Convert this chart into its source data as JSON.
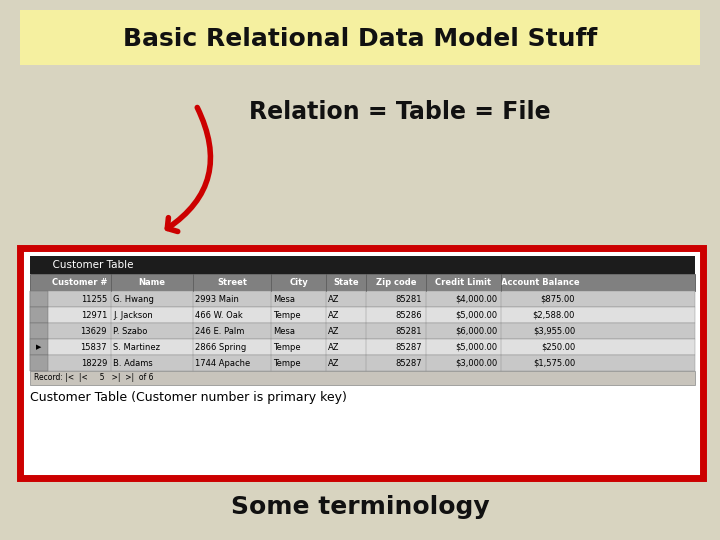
{
  "title": "Basic Relational Data Model Stuff",
  "title_bg": "#F5F0A0",
  "title_color": "#111111",
  "bg_color": "#D8D4C0",
  "subtitle": "Relation = Table = File",
  "subtitle_color": "#111111",
  "bottom_text": "Some terminology",
  "bottom_text_color": "#111111",
  "arrow_color": "#CC0000",
  "table_border_color": "#CC0000",
  "table_header": [
    "Customer #",
    "Name",
    "Street",
    "City",
    "State",
    "Zip code",
    "Credit Limit",
    "Account Balance"
  ],
  "table_rows": [
    [
      "11255",
      "G. Hwang",
      "2993 Main",
      "Mesa",
      "AZ",
      "85281",
      "$4,000.00",
      "$875.00"
    ],
    [
      "12971",
      "J. Jackson",
      "466 W. Oak",
      "Tempe",
      "AZ",
      "85286",
      "$5,000.00",
      "$2,588.00"
    ],
    [
      "13629",
      "P. Szabo",
      "246 E. Palm",
      "Mesa",
      "AZ",
      "85281",
      "$6,000.00",
      "$3,955.00"
    ],
    [
      "15837",
      "S. Martinez",
      "2866 Spring",
      "Tempe",
      "AZ",
      "85287",
      "$5,000.00",
      "$250.00"
    ],
    [
      "18229",
      "B. Adams",
      "1744 Apache",
      "Tempe",
      "AZ",
      "85287",
      "$3,000.00",
      "$1,575.00"
    ]
  ],
  "caption": "Customer Table (Customer number is primary key)",
  "table_title": "  Customer Table",
  "title_bar_color": "#1C1C1C",
  "header_bg": "#808080",
  "header_text_color": "#FFFFFF",
  "nav_text": "Record: |<  |<     5   >|  >|  of 6",
  "row_bg_even": "#C8C8C8",
  "row_bg_odd": "#E0E0E0",
  "row_indicator_color": "#A0A0A0"
}
